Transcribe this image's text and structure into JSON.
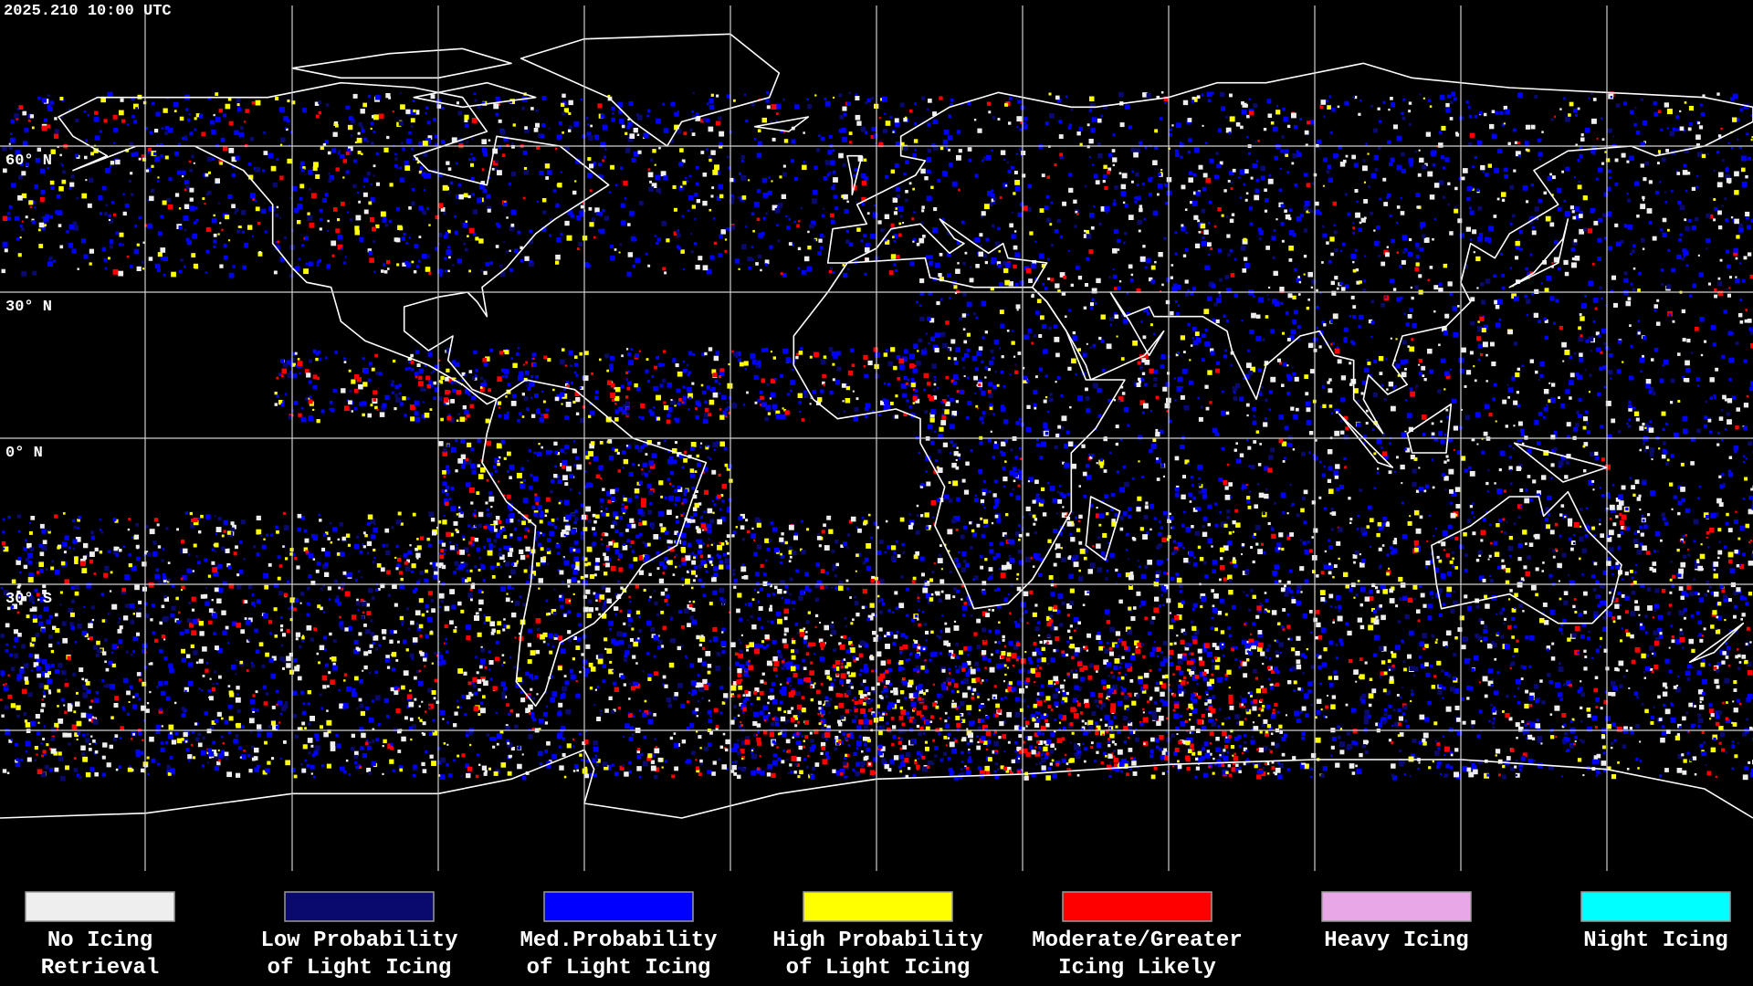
{
  "header": {
    "timestamp": "2025.210 10:00 UTC"
  },
  "map": {
    "latitude_labels": [
      "60° N",
      "30° N",
      "0° N",
      "30° S"
    ]
  },
  "legend": {
    "items": [
      {
        "line1": "No Icing",
        "line2": "Retrieval",
        "color": "#eeeeee"
      },
      {
        "line1": "Low Probability",
        "line2": "of Light Icing",
        "color": "#0a0a6e"
      },
      {
        "line1": "Med.Probability",
        "line2": "of Light Icing",
        "color": "#0000ff"
      },
      {
        "line1": "High Probability",
        "line2": "of Light Icing",
        "color": "#ffff00"
      },
      {
        "line1": "Moderate/Greater",
        "line2": "Icing Likely",
        "color": "#ff0000"
      },
      {
        "line1": "Heavy Icing",
        "color": "#e8a8e8"
      },
      {
        "line1": "Night Icing",
        "color": "#00ffff"
      }
    ]
  }
}
